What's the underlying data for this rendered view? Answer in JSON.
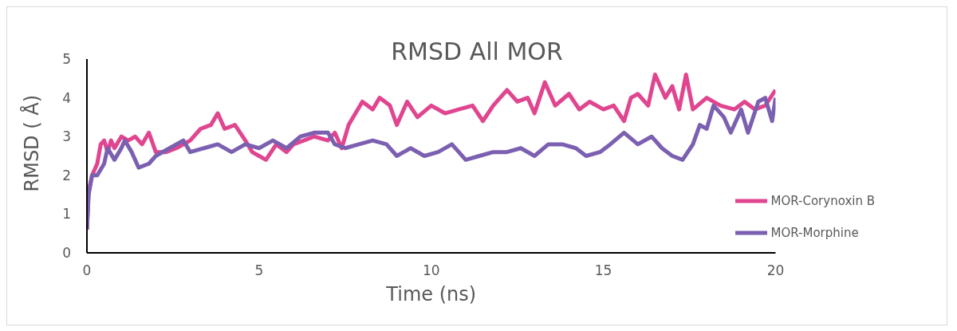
{
  "chart_data": {
    "type": "line",
    "title": "RMSD All MOR",
    "xlabel": "Time (ns)",
    "ylabel": "RMSD ( Å)",
    "xlim": [
      0,
      20
    ],
    "xticks": [
      0,
      5,
      10,
      15,
      20
    ],
    "ylim": [
      0,
      5
    ],
    "yticks": [
      0,
      1,
      2,
      3,
      4,
      5
    ],
    "grid": false,
    "legend": "bottom right",
    "marker": "none",
    "line_style": "solid",
    "series": [
      {
        "name": "MOR-Corynoxin B",
        "color": "#e0458f",
        "x": [
          0,
          0.05,
          0.15,
          0.3,
          0.4,
          0.5,
          0.6,
          0.7,
          0.8,
          1.0,
          1.2,
          1.4,
          1.6,
          1.8,
          2.0,
          2.3,
          2.6,
          3.0,
          3.3,
          3.6,
          3.8,
          4.0,
          4.3,
          4.6,
          4.8,
          5.0,
          5.2,
          5.5,
          5.8,
          6.0,
          6.3,
          6.6,
          7.0,
          7.2,
          7.4,
          7.6,
          7.8,
          8.0,
          8.3,
          8.5,
          8.8,
          9.0,
          9.3,
          9.6,
          10,
          10.4,
          10.8,
          11.2,
          11.5,
          11.8,
          12.2,
          12.5,
          12.8,
          13,
          13.3,
          13.6,
          14.0,
          14.3,
          14.6,
          15.0,
          15.3,
          15.6,
          15.8,
          16.0,
          16.3,
          16.5,
          16.8,
          17.0,
          17.2,
          17.4,
          17.6,
          18.0,
          18.4,
          18.8,
          19.1,
          19.4,
          19.7,
          20
        ],
        "values": [
          0.6,
          1.6,
          2.0,
          2.3,
          2.8,
          2.9,
          2.6,
          2.9,
          2.7,
          3.0,
          2.9,
          3.0,
          2.8,
          3.1,
          2.6,
          2.6,
          2.7,
          2.9,
          3.2,
          3.3,
          3.6,
          3.2,
          3.3,
          2.9,
          2.6,
          2.5,
          2.4,
          2.8,
          2.6,
          2.8,
          2.9,
          3.0,
          2.9,
          3.1,
          2.7,
          3.3,
          3.6,
          3.9,
          3.7,
          4.0,
          3.8,
          3.3,
          3.9,
          3.5,
          3.8,
          3.6,
          3.7,
          3.8,
          3.4,
          3.8,
          4.2,
          3.9,
          4.0,
          3.6,
          4.4,
          3.8,
          4.1,
          3.7,
          3.9,
          3.7,
          3.8,
          3.4,
          4.0,
          4.1,
          3.8,
          4.6,
          4.0,
          4.3,
          3.7,
          4.6,
          3.7,
          4.0,
          3.8,
          3.7,
          3.9,
          3.7,
          3.8,
          4.2
        ]
      },
      {
        "name": "MOR-Morphine",
        "color": "#7b5fb0",
        "x": [
          0,
          0.05,
          0.15,
          0.3,
          0.5,
          0.6,
          0.8,
          1.0,
          1.1,
          1.3,
          1.5,
          1.8,
          2.0,
          2.4,
          2.8,
          3.0,
          3.4,
          3.8,
          4.2,
          4.6,
          5.0,
          5.4,
          5.8,
          6.2,
          6.6,
          7.0,
          7.2,
          7.5,
          7.9,
          8.3,
          8.7,
          9.0,
          9.4,
          9.8,
          10.2,
          10.6,
          11.0,
          11.4,
          11.8,
          12.2,
          12.6,
          13.0,
          13.4,
          13.8,
          14.2,
          14.5,
          14.9,
          15.2,
          15.6,
          16.0,
          16.4,
          16.7,
          17.0,
          17.3,
          17.6,
          17.8,
          18.0,
          18.2,
          18.5,
          18.7,
          19.0,
          19.2,
          19.5,
          19.7,
          19.9,
          20
        ],
        "values": [
          0.6,
          1.5,
          2.0,
          2.0,
          2.3,
          2.7,
          2.4,
          2.7,
          2.9,
          2.6,
          2.2,
          2.3,
          2.5,
          2.7,
          2.9,
          2.6,
          2.7,
          2.8,
          2.6,
          2.8,
          2.7,
          2.9,
          2.7,
          3.0,
          3.1,
          3.1,
          2.8,
          2.7,
          2.8,
          2.9,
          2.8,
          2.5,
          2.7,
          2.5,
          2.6,
          2.8,
          2.4,
          2.5,
          2.6,
          2.6,
          2.7,
          2.5,
          2.8,
          2.8,
          2.7,
          2.5,
          2.6,
          2.8,
          3.1,
          2.8,
          3.0,
          2.7,
          2.5,
          2.4,
          2.8,
          3.3,
          3.2,
          3.8,
          3.5,
          3.1,
          3.7,
          3.1,
          3.9,
          4.0,
          3.4,
          4.0
        ]
      }
    ]
  }
}
